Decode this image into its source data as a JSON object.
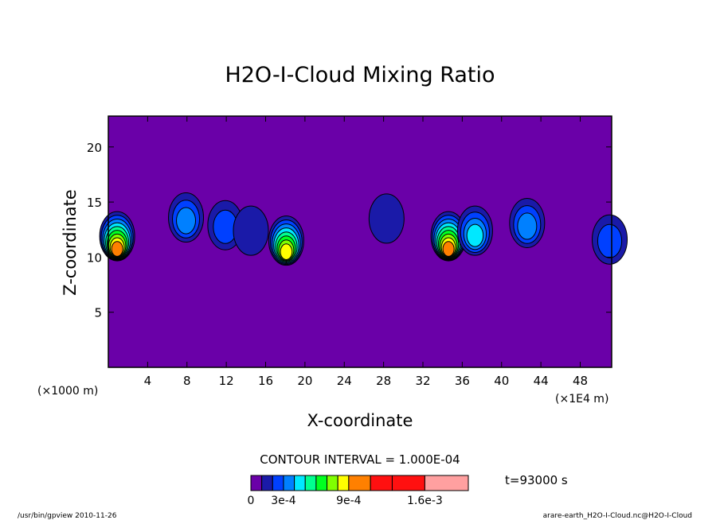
{
  "chart_data": {
    "type": "heatmap",
    "title": "H2O-I-Cloud Mixing Ratio",
    "xlabel": "X-coordinate",
    "ylabel": "Z-coordinate",
    "x_unit_label": "(×1E4 m)",
    "y_unit_label": "(×1000 m)",
    "x_ticks": [
      4,
      8,
      12,
      16,
      20,
      24,
      28,
      32,
      36,
      40,
      44,
      48
    ],
    "y_ticks": [
      5,
      10,
      15,
      20
    ],
    "xlim": [
      0,
      51.2
    ],
    "ylim": [
      0,
      22.8
    ],
    "contour_interval_text": "CONTOUR INTERVAL = 1.000E-04",
    "time_label": "t=93000 s",
    "colorbar": {
      "levels": [
        0,
        0.0001,
        0.0002,
        0.0003,
        0.0004,
        0.0005,
        0.0006,
        0.0007,
        0.0008,
        0.0009,
        0.0011,
        0.0013,
        0.0016,
        0.002
      ],
      "colors": [
        "#6a00a8",
        "#1a1aa8",
        "#0040ff",
        "#0080ff",
        "#00e8ff",
        "#00ff90",
        "#00ff20",
        "#80ff00",
        "#ffff00",
        "#ff8000",
        "#ff1010",
        "#ff1010",
        "#ffa0a0"
      ],
      "tick_labels": [
        "0",
        "3e-4",
        "9e-4",
        "1.6e-3"
      ]
    },
    "cloud_cells": [
      {
        "x": 0.9,
        "z": 11.9,
        "peak": 0.0009
      },
      {
        "x": 7.9,
        "z": 13.6,
        "peak": 0.0003
      },
      {
        "x": 11.9,
        "z": 12.9,
        "peak": 0.0002
      },
      {
        "x": 14.5,
        "z": 12.4,
        "peak": 0.0001
      },
      {
        "x": 18.1,
        "z": 11.5,
        "peak": 0.0008
      },
      {
        "x": 28.3,
        "z": 13.5,
        "peak": 0.0001
      },
      {
        "x": 34.6,
        "z": 11.9,
        "peak": 0.0009
      },
      {
        "x": 37.3,
        "z": 12.4,
        "peak": 0.0004
      },
      {
        "x": 42.6,
        "z": 13.1,
        "peak": 0.0003
      },
      {
        "x": 51.0,
        "z": 11.6,
        "peak": 0.0002
      }
    ],
    "grid": false
  },
  "footer": {
    "left": "/usr/bin/gpview  2010-11-26",
    "right": "arare-earth_H2O-I-Cloud.nc@H2O-I-Cloud"
  }
}
